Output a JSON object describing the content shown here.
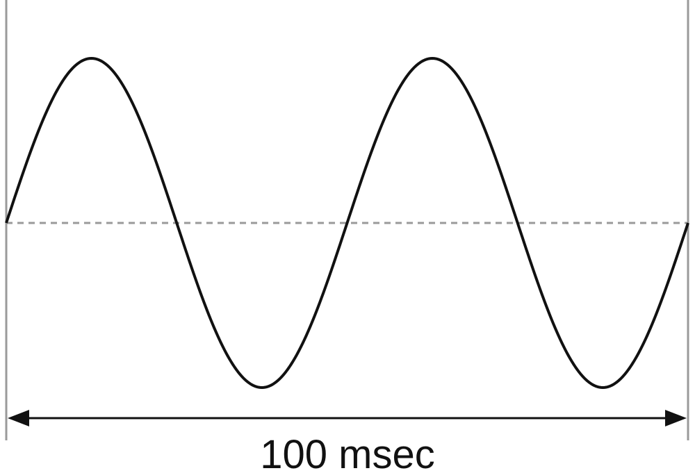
{
  "label": "100 msec"
}
